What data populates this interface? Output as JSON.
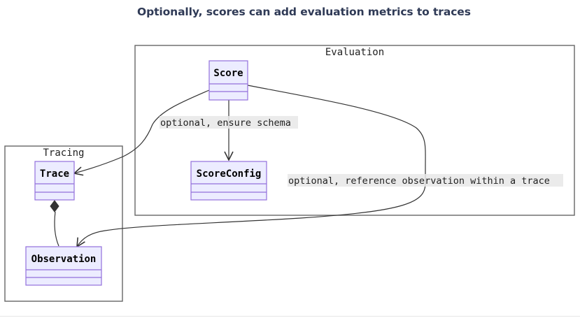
{
  "title": "Optionally, scores can add evaluation metrics to traces",
  "groups": {
    "evaluation": "Evaluation",
    "tracing": "Tracing"
  },
  "classes": {
    "score": "Score",
    "score_config": "ScoreConfig",
    "trace": "Trace",
    "observation": "Observation"
  },
  "edges": {
    "score_to_config": "optional, ensure schema",
    "score_to_observation": "optional, reference observation within a trace"
  },
  "colors": {
    "class_fill": "#ececff",
    "class_border": "#9370db",
    "group_border": "#666666",
    "edge": "#333333",
    "title": "#2f3a56"
  }
}
